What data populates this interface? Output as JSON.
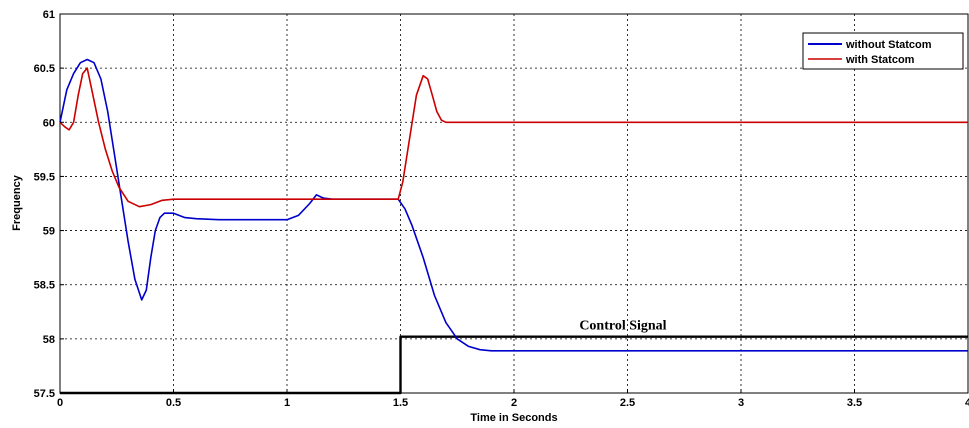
{
  "chart_data": {
    "type": "line",
    "title": "",
    "xlabel": "Time in Seconds",
    "ylabel": "Frequency",
    "xlim": [
      0,
      4
    ],
    "ylim": [
      57.5,
      61
    ],
    "grid": true,
    "legend_position": "top-right",
    "x_ticks": [
      0,
      0.5,
      1,
      1.5,
      2,
      2.5,
      3,
      3.5,
      4
    ],
    "x_tick_labels": [
      "0",
      "0.5",
      "1",
      "1.5",
      "2",
      "2.5",
      "3",
      "3.5",
      "4"
    ],
    "y_ticks": [
      57.5,
      58,
      58.5,
      59,
      59.5,
      60,
      60.5,
      61
    ],
    "y_tick_labels": [
      "57.5",
      "58",
      "58.5",
      "59",
      "59.5",
      "60",
      "60.5",
      "61"
    ],
    "series": [
      {
        "name": "without Statcom",
        "color": "#0000cc",
        "x": [
          0,
          0.03,
          0.06,
          0.09,
          0.12,
          0.15,
          0.18,
          0.21,
          0.24,
          0.27,
          0.3,
          0.33,
          0.36,
          0.38,
          0.4,
          0.42,
          0.44,
          0.46,
          0.5,
          0.55,
          0.6,
          0.7,
          0.8,
          0.9,
          1.0,
          1.05,
          1.1,
          1.13,
          1.16,
          1.2,
          1.3,
          1.4,
          1.49,
          1.52,
          1.55,
          1.6,
          1.65,
          1.7,
          1.75,
          1.8,
          1.85,
          1.9,
          2.0,
          2.2,
          2.5,
          3.0,
          3.5,
          4.0
        ],
        "y": [
          60.0,
          60.3,
          60.45,
          60.55,
          60.58,
          60.55,
          60.4,
          60.1,
          59.7,
          59.3,
          58.9,
          58.55,
          58.36,
          58.45,
          58.75,
          59.0,
          59.12,
          59.16,
          59.16,
          59.12,
          59.11,
          59.1,
          59.1,
          59.1,
          59.1,
          59.14,
          59.25,
          59.33,
          59.3,
          59.29,
          59.29,
          59.29,
          59.29,
          59.2,
          59.05,
          58.75,
          58.4,
          58.15,
          58.0,
          57.93,
          57.9,
          57.89,
          57.89,
          57.89,
          57.89,
          57.89,
          57.89,
          57.89
        ]
      },
      {
        "name": "with Statcom",
        "color": "#cc0000",
        "x": [
          0,
          0.02,
          0.04,
          0.06,
          0.08,
          0.1,
          0.12,
          0.14,
          0.17,
          0.2,
          0.23,
          0.26,
          0.3,
          0.35,
          0.4,
          0.45,
          0.5,
          0.6,
          0.8,
          1.0,
          1.2,
          1.4,
          1.49,
          1.51,
          1.54,
          1.57,
          1.6,
          1.62,
          1.64,
          1.66,
          1.68,
          1.7,
          1.75,
          2.0,
          2.5,
          3.0,
          3.5,
          4.0
        ],
        "y": [
          60.0,
          59.96,
          59.93,
          60.0,
          60.25,
          60.45,
          60.5,
          60.3,
          60.0,
          59.75,
          59.55,
          59.4,
          59.27,
          59.22,
          59.24,
          59.28,
          59.29,
          59.29,
          59.29,
          59.29,
          59.29,
          59.29,
          59.29,
          59.45,
          59.85,
          60.25,
          60.43,
          60.4,
          60.25,
          60.1,
          60.02,
          60.0,
          60.0,
          60.0,
          60.0,
          60.0,
          60.0,
          60.0
        ]
      },
      {
        "name": "",
        "color": "#000000",
        "x": [
          0,
          1.5,
          1.5,
          4
        ],
        "y": [
          57.5,
          57.5,
          58.02,
          58.02
        ]
      }
    ],
    "annotations": [
      {
        "text": "Control Signal",
        "x": 2.48,
        "y": 58.05
      }
    ]
  }
}
